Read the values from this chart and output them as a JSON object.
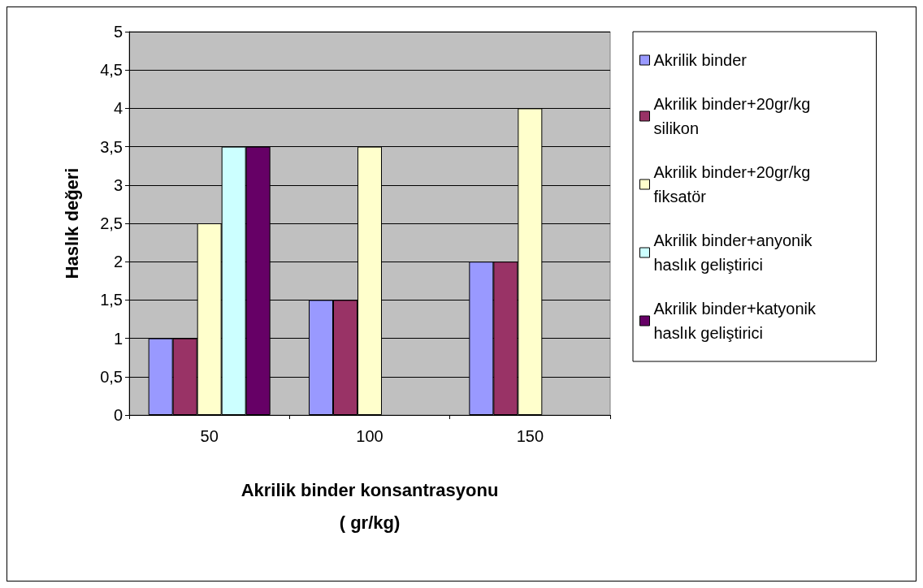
{
  "chart_data": {
    "type": "bar",
    "xlabel": "Akrilik binder konsantrasyonu\n( gr/kg)",
    "ylabel": "Haslık değeri",
    "categories": [
      "50",
      "100",
      "150"
    ],
    "series": [
      {
        "name": "Akrilik binder",
        "color": "#9999ff",
        "values": [
          1,
          1.5,
          2
        ]
      },
      {
        "name": "Akrilik binder+20gr/kg silikon",
        "color": "#993366",
        "values": [
          1,
          1.5,
          2
        ]
      },
      {
        "name": "Akrilik binder+20gr/kg fiksatör",
        "color": "#ffffcc",
        "values": [
          2.5,
          3.5,
          4
        ]
      },
      {
        "name": "Akrilik binder+anyonik haslık geliştirici",
        "color": "#ccffff",
        "values": [
          3.5,
          null,
          null
        ]
      },
      {
        "name": "Akrilik binder+katyonik haslık geliştirici",
        "color": "#660066",
        "values": [
          3.5,
          null,
          null
        ]
      }
    ],
    "ylim": [
      0,
      5
    ],
    "yticks": [
      0,
      {
        "value": 0.5,
        "label": "0,5"
      },
      1,
      {
        "value": 1.5,
        "label": "1,5"
      },
      2,
      {
        "value": 2.5,
        "label": "2,5"
      },
      3,
      {
        "value": 3.5,
        "label": "3,5"
      },
      4,
      {
        "value": 4.5,
        "label": "4,5"
      },
      5
    ],
    "grid": "y",
    "legend": "right"
  }
}
